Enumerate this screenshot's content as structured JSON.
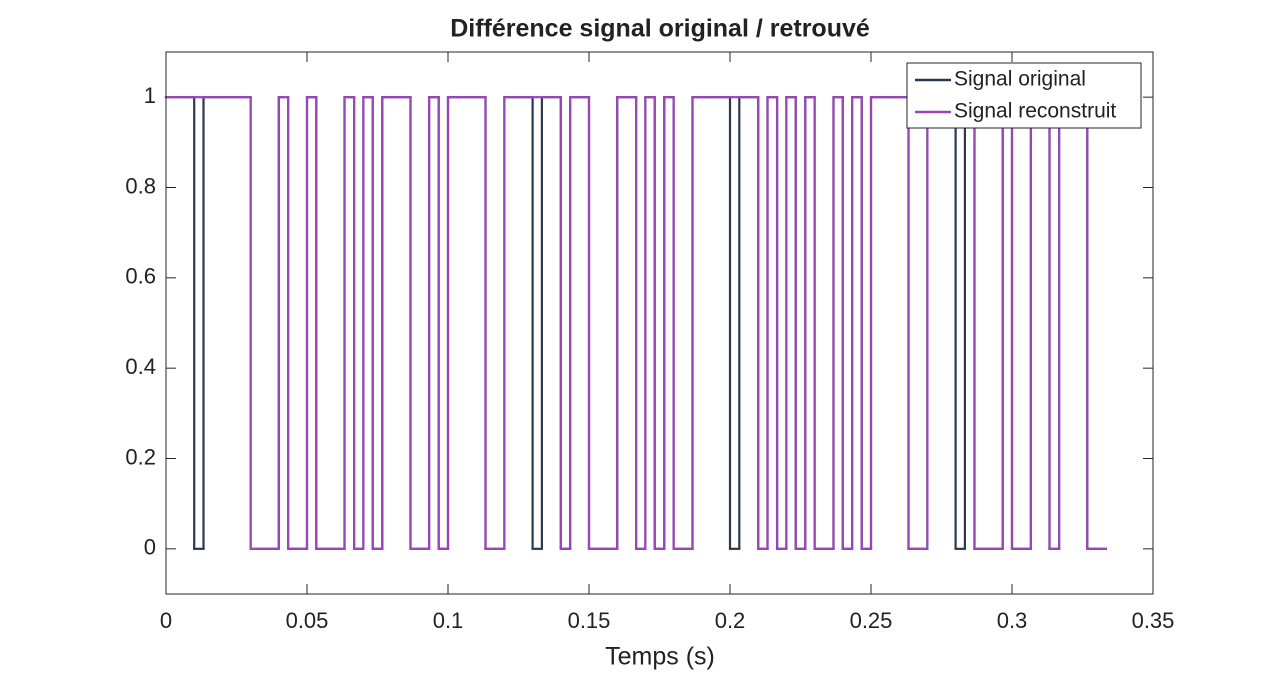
{
  "chart_data": {
    "type": "stairs",
    "title": "Différence signal original / retrouvé",
    "x_label": "Temps (s)",
    "x": [
      0,
      0.0033,
      0.0067,
      0.01,
      0.0133,
      0.0167,
      0.02,
      0.0233,
      0.0267,
      0.03,
      0.0333,
      0.0367,
      0.04,
      0.0433,
      0.0467,
      0.05,
      0.0533,
      0.0567,
      0.06,
      0.0633,
      0.0667,
      0.07,
      0.0733,
      0.0767,
      0.08,
      0.0833,
      0.0867,
      0.09,
      0.0933,
      0.0967,
      0.1,
      0.1033,
      0.1067,
      0.11,
      0.1133,
      0.1167,
      0.12,
      0.1233,
      0.1267,
      0.13,
      0.1333,
      0.1367,
      0.14,
      0.1433,
      0.1467,
      0.15,
      0.1533,
      0.1567,
      0.16,
      0.1633,
      0.1667,
      0.17,
      0.1733,
      0.1767,
      0.18,
      0.1833,
      0.1867,
      0.19,
      0.1933,
      0.1967,
      0.2,
      0.2033,
      0.2067,
      0.21,
      0.2133,
      0.2167,
      0.22,
      0.2233,
      0.2267,
      0.23,
      0.2333,
      0.2367,
      0.24,
      0.2433,
      0.2467,
      0.25,
      0.2533,
      0.2567,
      0.26,
      0.2633,
      0.2667,
      0.27,
      0.2733,
      0.2767,
      0.28,
      0.2833,
      0.2867,
      0.29,
      0.2933,
      0.2967,
      0.3,
      0.3033,
      0.3067,
      0.31,
      0.3133,
      0.3167,
      0.32,
      0.3233,
      0.3267,
      0.33,
      0.3333
    ],
    "series": [
      {
        "name": "Signal original",
        "color": "#2b3a4f",
        "values": [
          1,
          1,
          1,
          0,
          1,
          1,
          1,
          1,
          1,
          0,
          0,
          0,
          1,
          0,
          0,
          1,
          0,
          0,
          0,
          1,
          0,
          1,
          0,
          1,
          1,
          1,
          0,
          0,
          1,
          0,
          1,
          1,
          1,
          1,
          0,
          0,
          1,
          1,
          1,
          0,
          1,
          1,
          0,
          1,
          1,
          0,
          0,
          0,
          1,
          1,
          0,
          1,
          0,
          1,
          0,
          0,
          1,
          1,
          1,
          1,
          0,
          1,
          1,
          0,
          1,
          0,
          1,
          0,
          1,
          0,
          0,
          1,
          0,
          1,
          0,
          1,
          1,
          1,
          1,
          0,
          0,
          1,
          1,
          1,
          0,
          1,
          0,
          0,
          0,
          1,
          0,
          0,
          1,
          1,
          0,
          1,
          1,
          1,
          0,
          0,
          0
        ]
      },
      {
        "name": "Signal reconstruit",
        "color": "#9b46b8",
        "values": [
          1,
          1,
          1,
          1,
          1,
          1,
          1,
          1,
          1,
          0,
          0,
          0,
          1,
          0,
          0,
          1,
          0,
          0,
          0,
          1,
          0,
          1,
          0,
          1,
          1,
          1,
          0,
          0,
          1,
          0,
          1,
          1,
          1,
          1,
          0,
          0,
          1,
          1,
          1,
          1,
          1,
          1,
          0,
          1,
          1,
          0,
          0,
          0,
          1,
          1,
          0,
          1,
          0,
          1,
          0,
          0,
          1,
          1,
          1,
          1,
          1,
          1,
          1,
          0,
          1,
          0,
          1,
          0,
          1,
          0,
          0,
          1,
          0,
          1,
          0,
          1,
          1,
          1,
          1,
          0,
          0,
          1,
          1,
          1,
          1,
          1,
          0,
          0,
          0,
          1,
          0,
          0,
          1,
          1,
          0,
          1,
          1,
          1,
          0,
          0,
          0
        ]
      }
    ],
    "xlim": [
      0,
      0.35
    ],
    "xticks": [
      0,
      0.05,
      0.1,
      0.15,
      0.2,
      0.25,
      0.3,
      0.35
    ],
    "ylim": [
      -0.1,
      1.1
    ],
    "yticks": [
      0,
      0.2,
      0.4,
      0.6,
      0.8,
      1
    ],
    "legend": "top-right"
  }
}
